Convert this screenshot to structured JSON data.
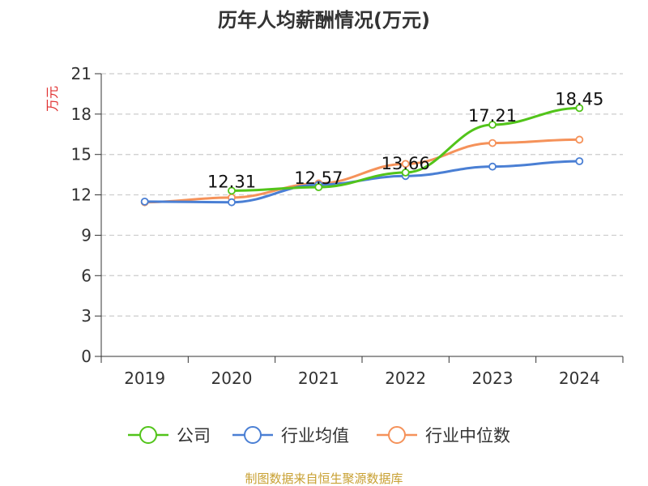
{
  "chart_data": {
    "type": "line",
    "title": "历年人均薪酬情况(万元)",
    "ylabel": "万元",
    "xlabel": "",
    "ylim": [
      0,
      21
    ],
    "yticks": [
      0,
      3,
      6,
      9,
      12,
      15,
      18,
      21
    ],
    "categories": [
      "2019",
      "2020",
      "2021",
      "2022",
      "2023",
      "2024"
    ],
    "series": [
      {
        "name": "公司",
        "color": "#52c41a",
        "values": [
          null,
          12.31,
          12.57,
          13.66,
          17.21,
          18.45
        ]
      },
      {
        "name": "行业均值",
        "color": "#4a7fd4",
        "values": [
          11.5,
          11.45,
          12.75,
          13.4,
          14.1,
          14.5
        ]
      },
      {
        "name": "行业中位数",
        "color": "#f5925a",
        "values": [
          11.45,
          11.8,
          12.85,
          14.3,
          15.85,
          16.1
        ]
      }
    ],
    "data_labels": [
      {
        "series": 0,
        "index": 1,
        "text": "12.31"
      },
      {
        "series": 0,
        "index": 2,
        "text": "12.57"
      },
      {
        "series": 0,
        "index": 3,
        "text": "13.66"
      },
      {
        "series": 0,
        "index": 4,
        "text": "17.21"
      },
      {
        "series": 0,
        "index": 5,
        "text": "18.45"
      }
    ],
    "grid": true,
    "legend_position": "bottom"
  },
  "colors": {
    "axis": "#333333",
    "grid": "#cccccc",
    "ylabel": "#e03030",
    "source": "#c8a032"
  },
  "source_text": "制图数据来自恒生聚源数据库"
}
